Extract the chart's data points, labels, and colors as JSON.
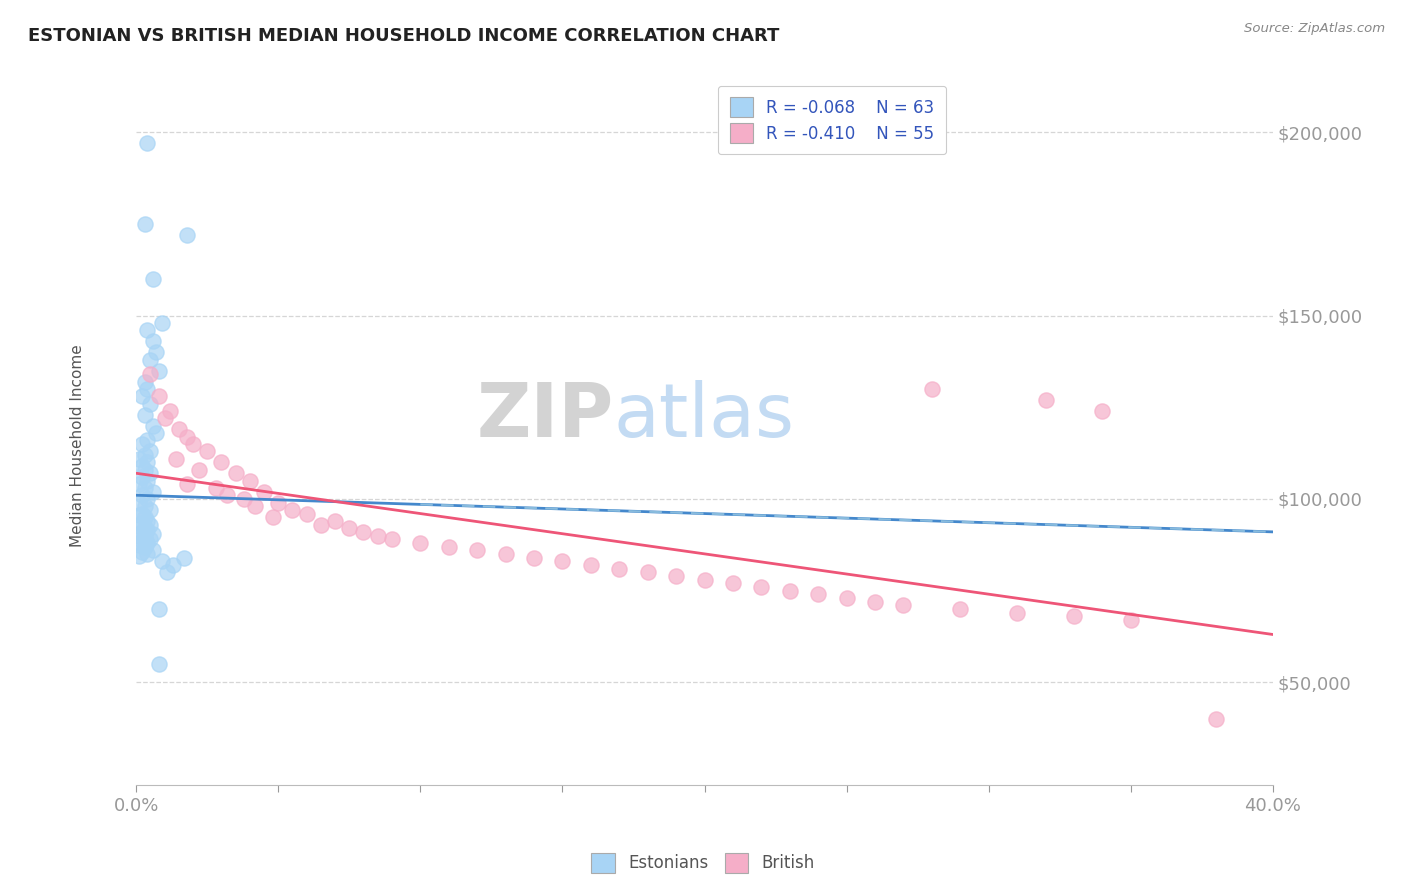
{
  "title": "ESTONIAN VS BRITISH MEDIAN HOUSEHOLD INCOME CORRELATION CHART",
  "source": "Source: ZipAtlas.com",
  "ylabel": "Median Household Income",
  "yticks": [
    50000,
    100000,
    150000,
    200000
  ],
  "ytick_labels": [
    "$50,000",
    "$100,000",
    "$150,000",
    "$200,000"
  ],
  "xmin": 0.0,
  "xmax": 0.4,
  "ymin": 22000,
  "ymax": 215000,
  "estonian_color": "#a8d4f5",
  "british_color": "#f5aec8",
  "estonian_line_color": "#4488cc",
  "british_line_color": "#ee5577",
  "estonian_line_dashed_color": "#88bbdd",
  "background_color": "#ffffff",
  "grid_color": "#cccccc",
  "title_color": "#222222",
  "axis_label_color": "#3355bb",
  "estonian_points": [
    [
      0.004,
      197000
    ],
    [
      0.003,
      175000
    ],
    [
      0.018,
      172000
    ],
    [
      0.006,
      160000
    ],
    [
      0.009,
      148000
    ],
    [
      0.004,
      146000
    ],
    [
      0.006,
      143000
    ],
    [
      0.007,
      140000
    ],
    [
      0.005,
      138000
    ],
    [
      0.008,
      135000
    ],
    [
      0.003,
      132000
    ],
    [
      0.004,
      130000
    ],
    [
      0.002,
      128000
    ],
    [
      0.005,
      126000
    ],
    [
      0.003,
      123000
    ],
    [
      0.006,
      120000
    ],
    [
      0.007,
      118000
    ],
    [
      0.004,
      116000
    ],
    [
      0.002,
      115000
    ],
    [
      0.005,
      113000
    ],
    [
      0.003,
      112000
    ],
    [
      0.001,
      111000
    ],
    [
      0.004,
      110000
    ],
    [
      0.002,
      109000
    ],
    [
      0.003,
      108000
    ],
    [
      0.005,
      107000
    ],
    [
      0.002,
      106000
    ],
    [
      0.004,
      105000
    ],
    [
      0.001,
      104000
    ],
    [
      0.003,
      103000
    ],
    [
      0.006,
      102000
    ],
    [
      0.002,
      101000
    ],
    [
      0.004,
      100000
    ],
    [
      0.001,
      99000
    ],
    [
      0.003,
      98000
    ],
    [
      0.005,
      97000
    ],
    [
      0.002,
      96000
    ],
    [
      0.001,
      95500
    ],
    [
      0.003,
      95000
    ],
    [
      0.004,
      94000
    ],
    [
      0.002,
      93500
    ],
    [
      0.005,
      93000
    ],
    [
      0.001,
      92500
    ],
    [
      0.003,
      92000
    ],
    [
      0.004,
      91500
    ],
    [
      0.002,
      91000
    ],
    [
      0.006,
      90500
    ],
    [
      0.001,
      90000
    ],
    [
      0.003,
      89500
    ],
    [
      0.005,
      89000
    ],
    [
      0.002,
      88500
    ],
    [
      0.004,
      88000
    ],
    [
      0.001,
      87500
    ],
    [
      0.003,
      87000
    ],
    [
      0.006,
      86000
    ],
    [
      0.002,
      85500
    ],
    [
      0.004,
      85000
    ],
    [
      0.001,
      84500
    ],
    [
      0.017,
      84000
    ],
    [
      0.009,
      83000
    ],
    [
      0.013,
      82000
    ],
    [
      0.011,
      80000
    ],
    [
      0.008,
      70000
    ],
    [
      0.008,
      55000
    ]
  ],
  "british_points": [
    [
      0.005,
      134000
    ],
    [
      0.008,
      128000
    ],
    [
      0.012,
      124000
    ],
    [
      0.01,
      122000
    ],
    [
      0.015,
      119000
    ],
    [
      0.018,
      117000
    ],
    [
      0.02,
      115000
    ],
    [
      0.025,
      113000
    ],
    [
      0.014,
      111000
    ],
    [
      0.03,
      110000
    ],
    [
      0.022,
      108000
    ],
    [
      0.035,
      107000
    ],
    [
      0.04,
      105000
    ],
    [
      0.018,
      104000
    ],
    [
      0.028,
      103000
    ],
    [
      0.045,
      102000
    ],
    [
      0.032,
      101000
    ],
    [
      0.038,
      100000
    ],
    [
      0.05,
      99000
    ],
    [
      0.042,
      98000
    ],
    [
      0.055,
      97000
    ],
    [
      0.06,
      96000
    ],
    [
      0.048,
      95000
    ],
    [
      0.07,
      94000
    ],
    [
      0.065,
      93000
    ],
    [
      0.075,
      92000
    ],
    [
      0.08,
      91000
    ],
    [
      0.085,
      90000
    ],
    [
      0.09,
      89000
    ],
    [
      0.1,
      88000
    ],
    [
      0.11,
      87000
    ],
    [
      0.12,
      86000
    ],
    [
      0.28,
      130000
    ],
    [
      0.32,
      127000
    ],
    [
      0.34,
      124000
    ],
    [
      0.13,
      85000
    ],
    [
      0.14,
      84000
    ],
    [
      0.15,
      83000
    ],
    [
      0.16,
      82000
    ],
    [
      0.17,
      81000
    ],
    [
      0.18,
      80000
    ],
    [
      0.19,
      79000
    ],
    [
      0.2,
      78000
    ],
    [
      0.21,
      77000
    ],
    [
      0.22,
      76000
    ],
    [
      0.23,
      75000
    ],
    [
      0.24,
      74000
    ],
    [
      0.25,
      73000
    ],
    [
      0.26,
      72000
    ],
    [
      0.27,
      71000
    ],
    [
      0.29,
      70000
    ],
    [
      0.31,
      69000
    ],
    [
      0.33,
      68000
    ],
    [
      0.35,
      67000
    ],
    [
      0.38,
      40000
    ]
  ]
}
